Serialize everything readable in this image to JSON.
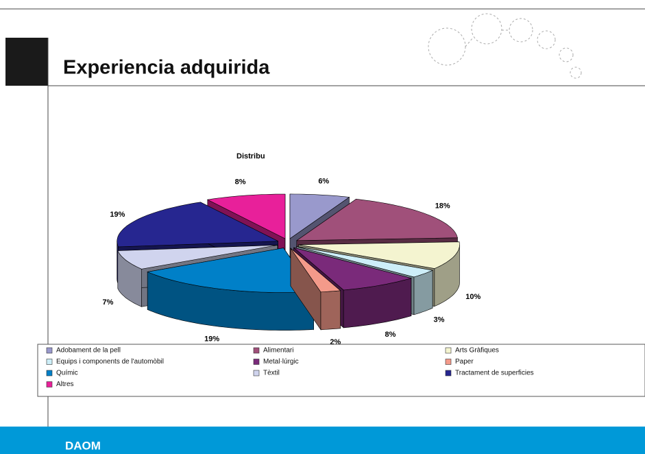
{
  "slide_title": "Experiencia adquirida",
  "footer": "DAOM",
  "chart_data": {
    "type": "pie3d",
    "title": "Distribu",
    "categories": [
      "Adobament de la pell",
      "Alimentari",
      "Arts Gràfiques",
      "Equips i components de l'automòbil",
      "Metal·lúrgic",
      "Paper",
      "Químic",
      "Tèxtil",
      "Tractament de superficies",
      "Altres"
    ],
    "values": [
      6,
      18,
      10,
      3,
      8,
      2,
      19,
      7,
      19,
      8
    ],
    "value_labels": [
      "6%",
      "18%",
      "10%",
      "3%",
      "8%",
      "2%",
      "19%",
      "7%",
      "19%",
      "8%"
    ],
    "colors": [
      "#9999cc",
      "#a0507a",
      "#f4f4d0",
      "#cdeef8",
      "#7a2a7a",
      "#f49a8a",
      "#0080c8",
      "#d0d4ee",
      "#262690",
      "#e8209a"
    ],
    "legend": "bottom"
  }
}
